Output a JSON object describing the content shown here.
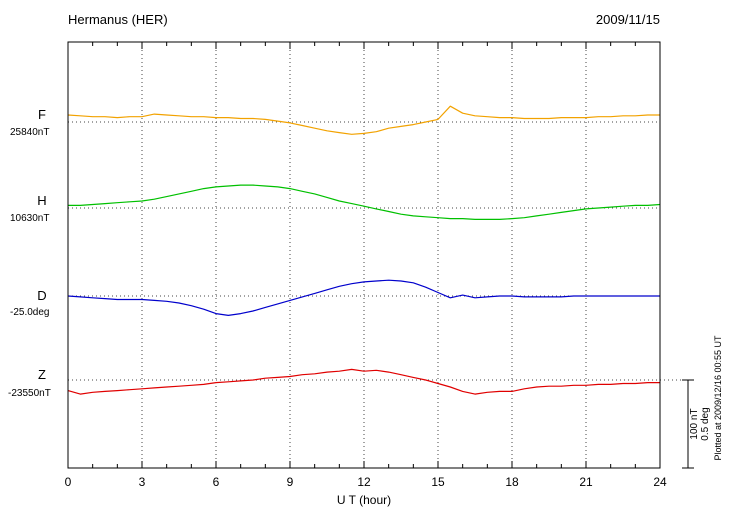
{
  "header": {
    "title": "Hermanus (HER)",
    "date": "2009/11/15"
  },
  "axis": {
    "xlabel": "U T (hour)",
    "xticks": [
      "0",
      "3",
      "6",
      "9",
      "12",
      "15",
      "18",
      "21",
      "24"
    ]
  },
  "scalebar": {
    "nt_label": "100 nT",
    "deg_label": "0.5 deg"
  },
  "footer": {
    "plotted_at": "Plotted at 2009/12/16 00:55 UT"
  },
  "chart_data": {
    "type": "line",
    "title": "Hermanus (HER)",
    "date": "2009/11/15",
    "xlabel": "U T (hour)",
    "x_range": [
      0,
      24
    ],
    "x_ticks": [
      0,
      3,
      6,
      9,
      12,
      15,
      18,
      21,
      24
    ],
    "grid": "dotted vertical lines every 3 h; dotted horizontal baseline per trace",
    "scale_bar": {
      "nT": 100,
      "deg": 0.5
    },
    "x_hours": [
      0,
      0.5,
      1,
      1.5,
      2,
      2.5,
      3,
      3.5,
      4,
      4.5,
      5,
      5.5,
      6,
      6.5,
      7,
      7.5,
      8,
      8.5,
      9,
      9.5,
      10,
      10.5,
      11,
      11.5,
      12,
      12.5,
      13,
      13.5,
      14,
      14.5,
      15,
      15.5,
      16,
      16.5,
      17,
      17.5,
      18,
      18.5,
      19,
      19.5,
      20,
      20.5,
      21,
      21.5,
      22,
      22.5,
      23,
      23.5,
      24
    ],
    "series": [
      {
        "name": "F",
        "unit": "nT",
        "color": "#f2a200",
        "baseline_value": 25840,
        "baseline_label": "25840nT",
        "offsets": [
          8,
          7,
          6,
          6,
          5,
          6,
          6,
          9,
          8,
          7,
          6,
          6,
          5,
          5,
          4,
          4,
          3,
          1,
          -1,
          -4,
          -7,
          -10,
          -12,
          -14,
          -13,
          -11,
          -7,
          -5,
          -3,
          0,
          3,
          18,
          10,
          7,
          6,
          5,
          5,
          4,
          4,
          4,
          5,
          5,
          5,
          6,
          6,
          7,
          7,
          8,
          8
        ]
      },
      {
        "name": "H",
        "unit": "nT",
        "color": "#00c000",
        "baseline_value": 10630,
        "baseline_label": "10630nT",
        "offsets": [
          3,
          3,
          4,
          5,
          6,
          7,
          8,
          10,
          13,
          16,
          19,
          22,
          24,
          25,
          26,
          26,
          25,
          24,
          22,
          19,
          16,
          12,
          8,
          5,
          2,
          -1,
          -4,
          -7,
          -9,
          -10,
          -11,
          -12,
          -12,
          -13,
          -13,
          -13,
          -12,
          -11,
          -9,
          -7,
          -5,
          -3,
          -1,
          0,
          1,
          2,
          3,
          3,
          4
        ]
      },
      {
        "name": "D",
        "unit": "deg",
        "color": "#0000cc",
        "baseline_value": -25.0,
        "baseline_label": "-25.0deg",
        "offsets": [
          0,
          -0.005,
          -0.01,
          -0.015,
          -0.02,
          -0.02,
          -0.02,
          -0.025,
          -0.03,
          -0.04,
          -0.055,
          -0.075,
          -0.1,
          -0.11,
          -0.1,
          -0.085,
          -0.065,
          -0.045,
          -0.025,
          -0.005,
          0.015,
          0.035,
          0.055,
          0.07,
          0.08,
          0.085,
          0.09,
          0.085,
          0.075,
          0.05,
          0.02,
          -0.01,
          0.005,
          -0.01,
          -0.005,
          0,
          0,
          -0.005,
          -0.005,
          -0.005,
          -0.005,
          0,
          0,
          0,
          0,
          0,
          0,
          0,
          0
        ]
      },
      {
        "name": "Z",
        "unit": "nT",
        "color": "#e00000",
        "baseline_value": -23550,
        "baseline_label": "-23550nT",
        "offsets": [
          -12,
          -16,
          -14,
          -13,
          -12,
          -11,
          -10,
          -9,
          -8,
          -7,
          -6,
          -5,
          -3,
          -2,
          -1,
          0,
          2,
          3,
          4,
          6,
          7,
          9,
          10,
          12,
          10,
          11,
          9,
          6,
          3,
          0,
          -4,
          -8,
          -13,
          -16,
          -14,
          -13,
          -13,
          -10,
          -8,
          -7,
          -7,
          -6,
          -6,
          -5,
          -5,
          -4,
          -4,
          -3,
          -3
        ]
      }
    ]
  }
}
